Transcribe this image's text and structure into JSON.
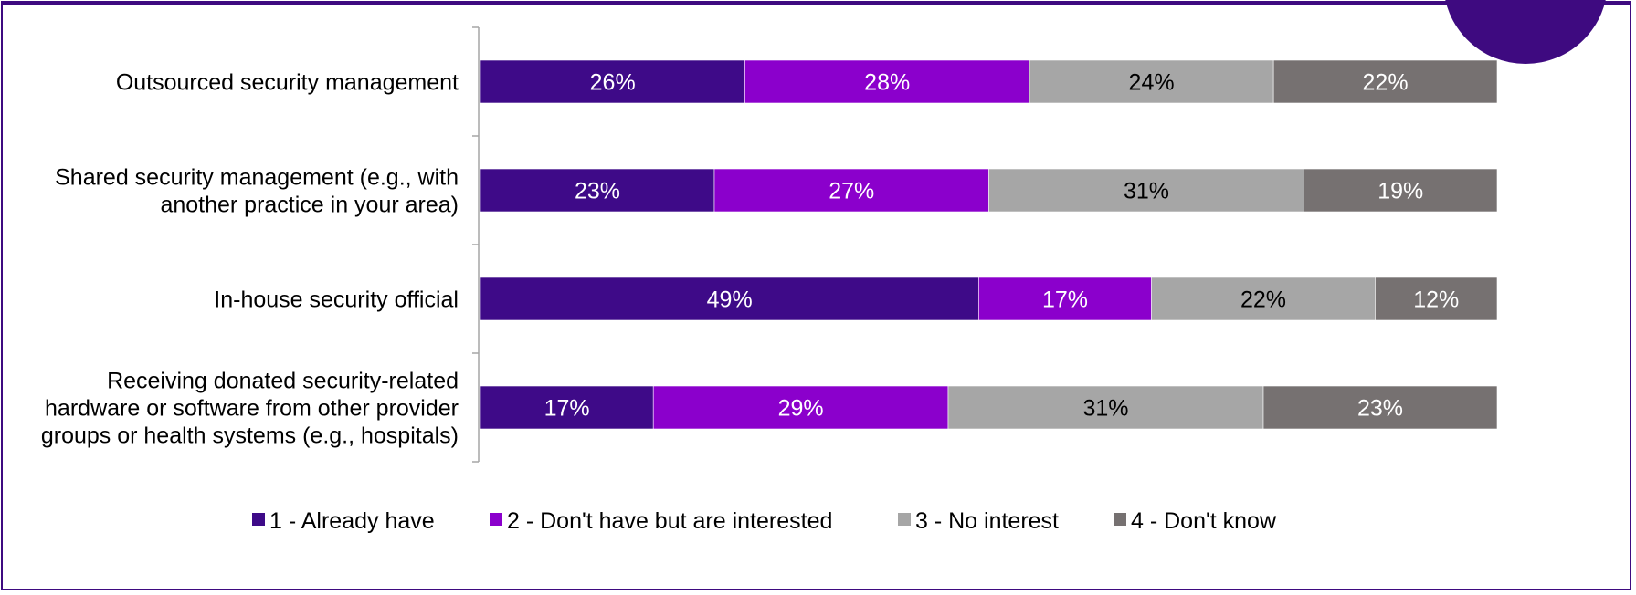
{
  "chart_data": {
    "type": "bar",
    "orientation": "horizontal",
    "stacked": true,
    "percent": true,
    "categories": [
      [
        "Outsourced security management"
      ],
      [
        "Shared security management (e.g., with",
        "another practice in your area)"
      ],
      [
        "In-house security official"
      ],
      [
        "Receiving donated security-related",
        "hardware or software from other provider",
        "groups or health systems (e.g., hospitals)"
      ]
    ],
    "series": [
      {
        "name": "1 - Already have",
        "color": "#3e0a88",
        "label_color": "#ffffff",
        "values": [
          26,
          23,
          49,
          17
        ]
      },
      {
        "name": "2 - Don't have but are interested",
        "color": "#8b00cc",
        "label_color": "#ffffff",
        "values": [
          28,
          27,
          17,
          29
        ]
      },
      {
        "name": "3 - No interest",
        "color": "#a6a6a6",
        "label_color": "#000000",
        "values": [
          24,
          31,
          22,
          31
        ]
      },
      {
        "name": "4 - Don't know",
        "color": "#767171",
        "label_color": "#ffffff",
        "values": [
          22,
          19,
          12,
          23
        ]
      }
    ],
    "xlim": [
      0,
      100
    ],
    "grid": false,
    "legend_position": "bottom"
  }
}
